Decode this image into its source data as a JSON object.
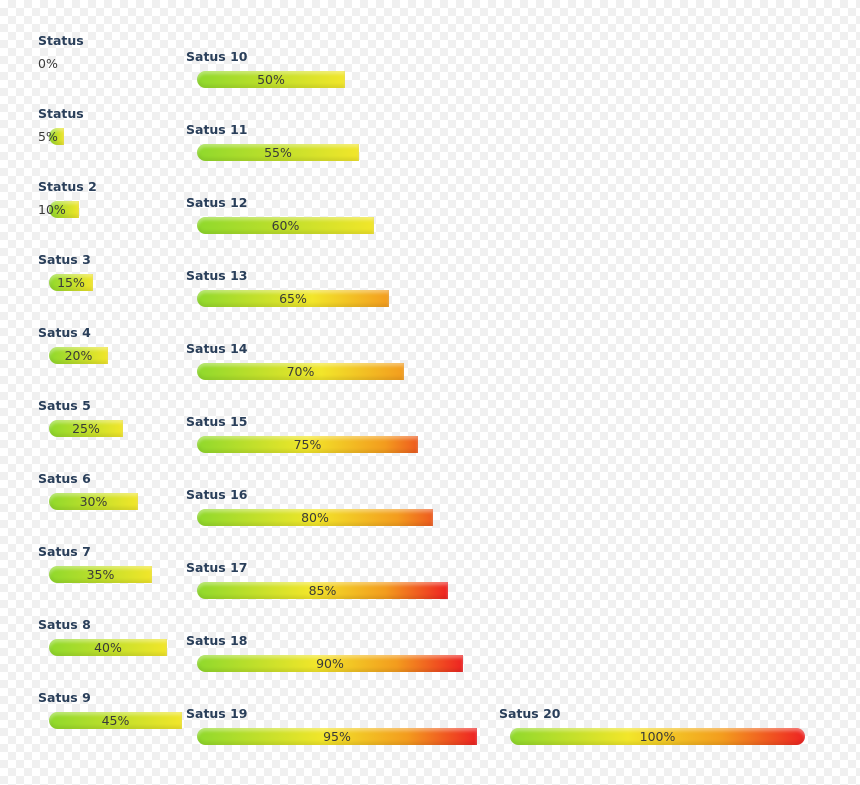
{
  "statuses": [
    {
      "label": "Status",
      "value": 0,
      "text": "0%"
    },
    {
      "label": "Status",
      "value": 5,
      "text": "5%"
    },
    {
      "label": "Status 2",
      "value": 10,
      "text": "10%"
    },
    {
      "label": "Satus 3",
      "value": 15,
      "text": "15%"
    },
    {
      "label": "Satus 4",
      "value": 20,
      "text": "20%"
    },
    {
      "label": "Satus 5",
      "value": 25,
      "text": "25%"
    },
    {
      "label": "Satus 6",
      "value": 30,
      "text": "30%"
    },
    {
      "label": "Satus 7",
      "value": 35,
      "text": "35%"
    },
    {
      "label": "Satus 8",
      "value": 40,
      "text": "40%"
    },
    {
      "label": "Satus 9",
      "value": 45,
      "text": "45%"
    },
    {
      "label": "Satus 10",
      "value": 50,
      "text": "50%"
    },
    {
      "label": "Satus 11",
      "value": 55,
      "text": "55%"
    },
    {
      "label": "Satus 12",
      "value": 60,
      "text": "60%"
    },
    {
      "label": "Satus 13",
      "value": 65,
      "text": "65%"
    },
    {
      "label": "Satus 14",
      "value": 70,
      "text": "70%"
    },
    {
      "label": "Satus 15",
      "value": 75,
      "text": "75%"
    },
    {
      "label": "Satus 16",
      "value": 80,
      "text": "80%"
    },
    {
      "label": "Satus 17",
      "value": 85,
      "text": "85%"
    },
    {
      "label": "Satus 18",
      "value": 90,
      "text": "90%"
    },
    {
      "label": "Satus 19",
      "value": 95,
      "text": "95%"
    },
    {
      "label": "Satus 20",
      "value": 100,
      "text": "100%"
    }
  ],
  "colors": {
    "gradient_start": "#8fd92c",
    "gradient_mid": "#f2e62a",
    "gradient_warm": "#f39c1e",
    "gradient_end": "#ee2222",
    "label_color": "#2a3f5a"
  }
}
